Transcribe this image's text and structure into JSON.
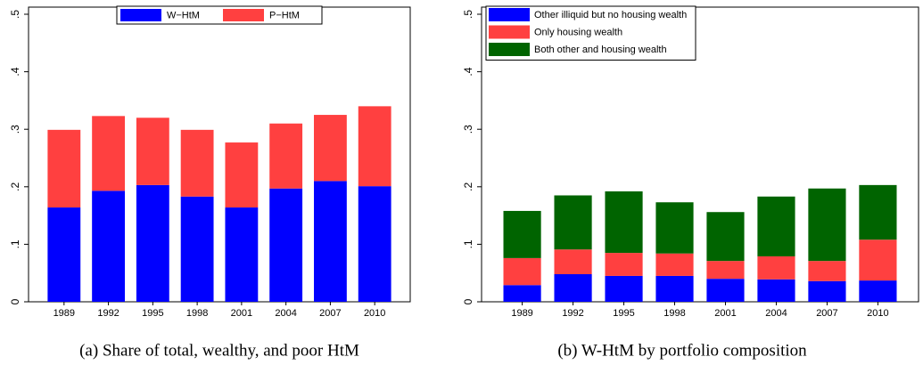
{
  "chart_data": [
    {
      "type": "bar",
      "stacked": true,
      "caption": "(a) Share of total, wealthy, and poor HtM",
      "categories": [
        "1989",
        "1992",
        "1995",
        "1998",
        "2001",
        "2004",
        "2007",
        "2010"
      ],
      "series": [
        {
          "name": "W−HtM",
          "color": "#0000ff",
          "values": [
            0.164,
            0.193,
            0.203,
            0.183,
            0.164,
            0.197,
            0.21,
            0.201
          ]
        },
        {
          "name": "P−HtM",
          "color": "#ff4040",
          "values": [
            0.135,
            0.13,
            0.117,
            0.116,
            0.113,
            0.113,
            0.115,
            0.139
          ]
        }
      ],
      "ylim": [
        0,
        0.5
      ],
      "yticks": [
        0,
        {
          "value": 0.1,
          "label": ".1"
        },
        {
          "value": 0.2,
          "label": ".2"
        },
        {
          "value": 0.3,
          "label": ".3"
        },
        {
          "value": 0.4,
          "label": ".4"
        },
        {
          "value": 0.5,
          "label": ".5"
        }
      ],
      "grid": false,
      "legend": "top"
    },
    {
      "type": "bar",
      "stacked": true,
      "caption": "(b) W-HtM by portfolio composition",
      "categories": [
        "1989",
        "1992",
        "1995",
        "1998",
        "2001",
        "2004",
        "2007",
        "2010"
      ],
      "series": [
        {
          "name": "Other illiquid but no housing wealth",
          "color": "#0000ff",
          "values": [
            0.029,
            0.048,
            0.045,
            0.045,
            0.04,
            0.039,
            0.036,
            0.037
          ]
        },
        {
          "name": "Only housing wealth",
          "color": "#ff4040",
          "values": [
            0.047,
            0.043,
            0.04,
            0.039,
            0.031,
            0.04,
            0.035,
            0.071
          ]
        },
        {
          "name": "Both other and housing wealth",
          "color": "#006400",
          "values": [
            0.082,
            0.094,
            0.107,
            0.089,
            0.085,
            0.104,
            0.126,
            0.095
          ]
        }
      ],
      "ylim": [
        0,
        0.5
      ],
      "yticks": [
        0,
        {
          "value": 0.1,
          "label": ".1"
        },
        {
          "value": 0.2,
          "label": ".2"
        },
        {
          "value": 0.3,
          "label": ".3"
        },
        {
          "value": 0.4,
          "label": ".4"
        },
        {
          "value": 0.5,
          "label": ".5"
        }
      ],
      "grid": false,
      "legend": "top-left"
    }
  ]
}
